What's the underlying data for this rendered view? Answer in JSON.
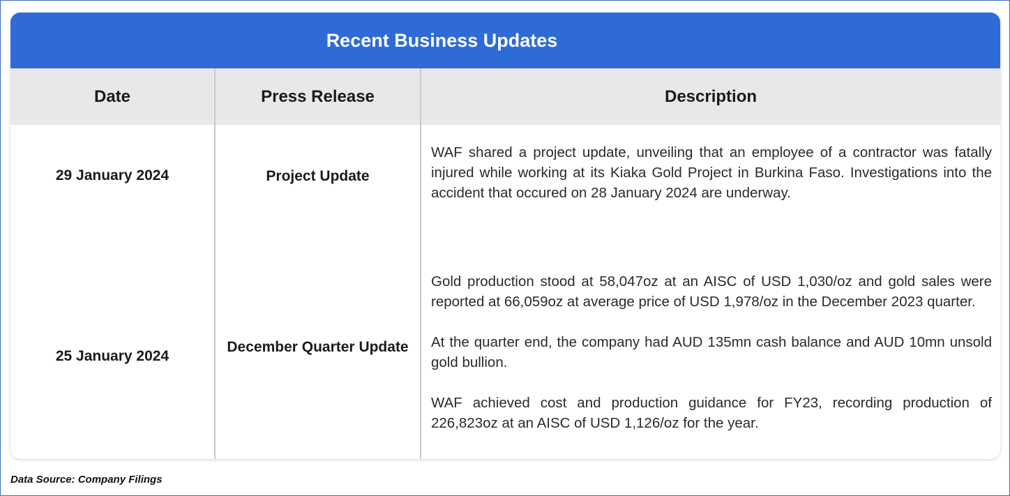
{
  "table": {
    "title": "Recent Business Updates",
    "headers": {
      "date": "Date",
      "press_release": "Press Release",
      "description": "Description"
    },
    "rows": [
      {
        "date": "29 January 2024",
        "press_release": "Project Update",
        "description": [
          "WAF shared a project update, unveiling that an employee of a contractor was fatally injured while working at its Kiaka Gold Project in Burkina Faso. Investigations into the accident that occured on 28 January 2024 are underway."
        ]
      },
      {
        "date": "25 January 2024",
        "press_release": "December Quarter Update",
        "description": [
          "Gold production stood at 58,047oz at an AISC of USD 1,030/oz and gold sales were reported at 66,059oz at average price of USD 1,978/oz in the December 2023 quarter.",
          "At the quarter end, the company had AUD 135mn cash balance and AUD 10mn unsold gold bullion.",
          "WAF achieved cost and production guidance for FY23, recording production of 226,823oz at an AISC of USD 1,126/oz for the year."
        ]
      }
    ]
  },
  "footer": {
    "source": "Data Source: Company Filings"
  },
  "colors": {
    "title_bar": "#2e6bd7",
    "header_bg": "#e8e8e8",
    "frame_border": "#3a66c4"
  }
}
